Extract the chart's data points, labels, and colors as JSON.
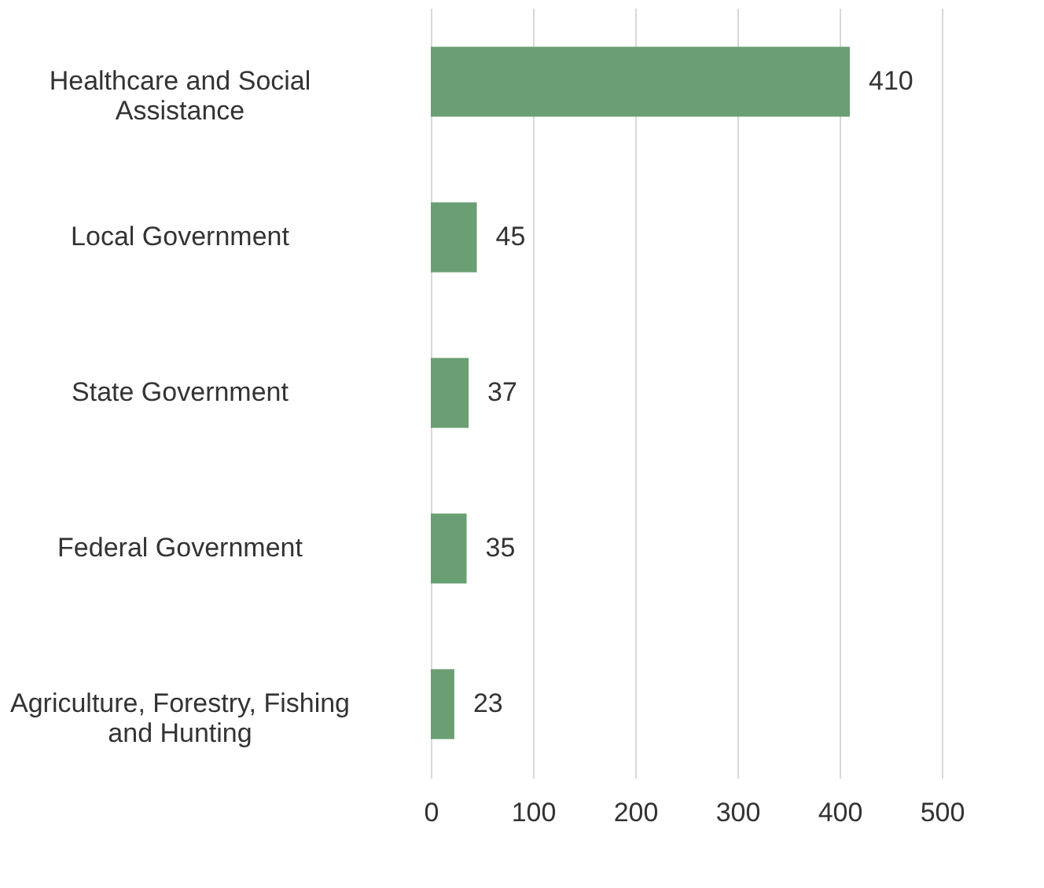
{
  "chart_data": {
    "type": "bar",
    "orientation": "horizontal",
    "categories": [
      "Healthcare and Social Assistance",
      "Local Government",
      "State Government",
      "Federal Government",
      "Agriculture, Forestry, Fishing and Hunting"
    ],
    "values": [
      410,
      45,
      37,
      35,
      23
    ],
    "color": "#6a9e73",
    "xlim": [
      0,
      500
    ],
    "xticks": [
      0,
      100,
      200,
      300,
      400,
      500
    ],
    "grid": "x",
    "data_labels": true
  }
}
